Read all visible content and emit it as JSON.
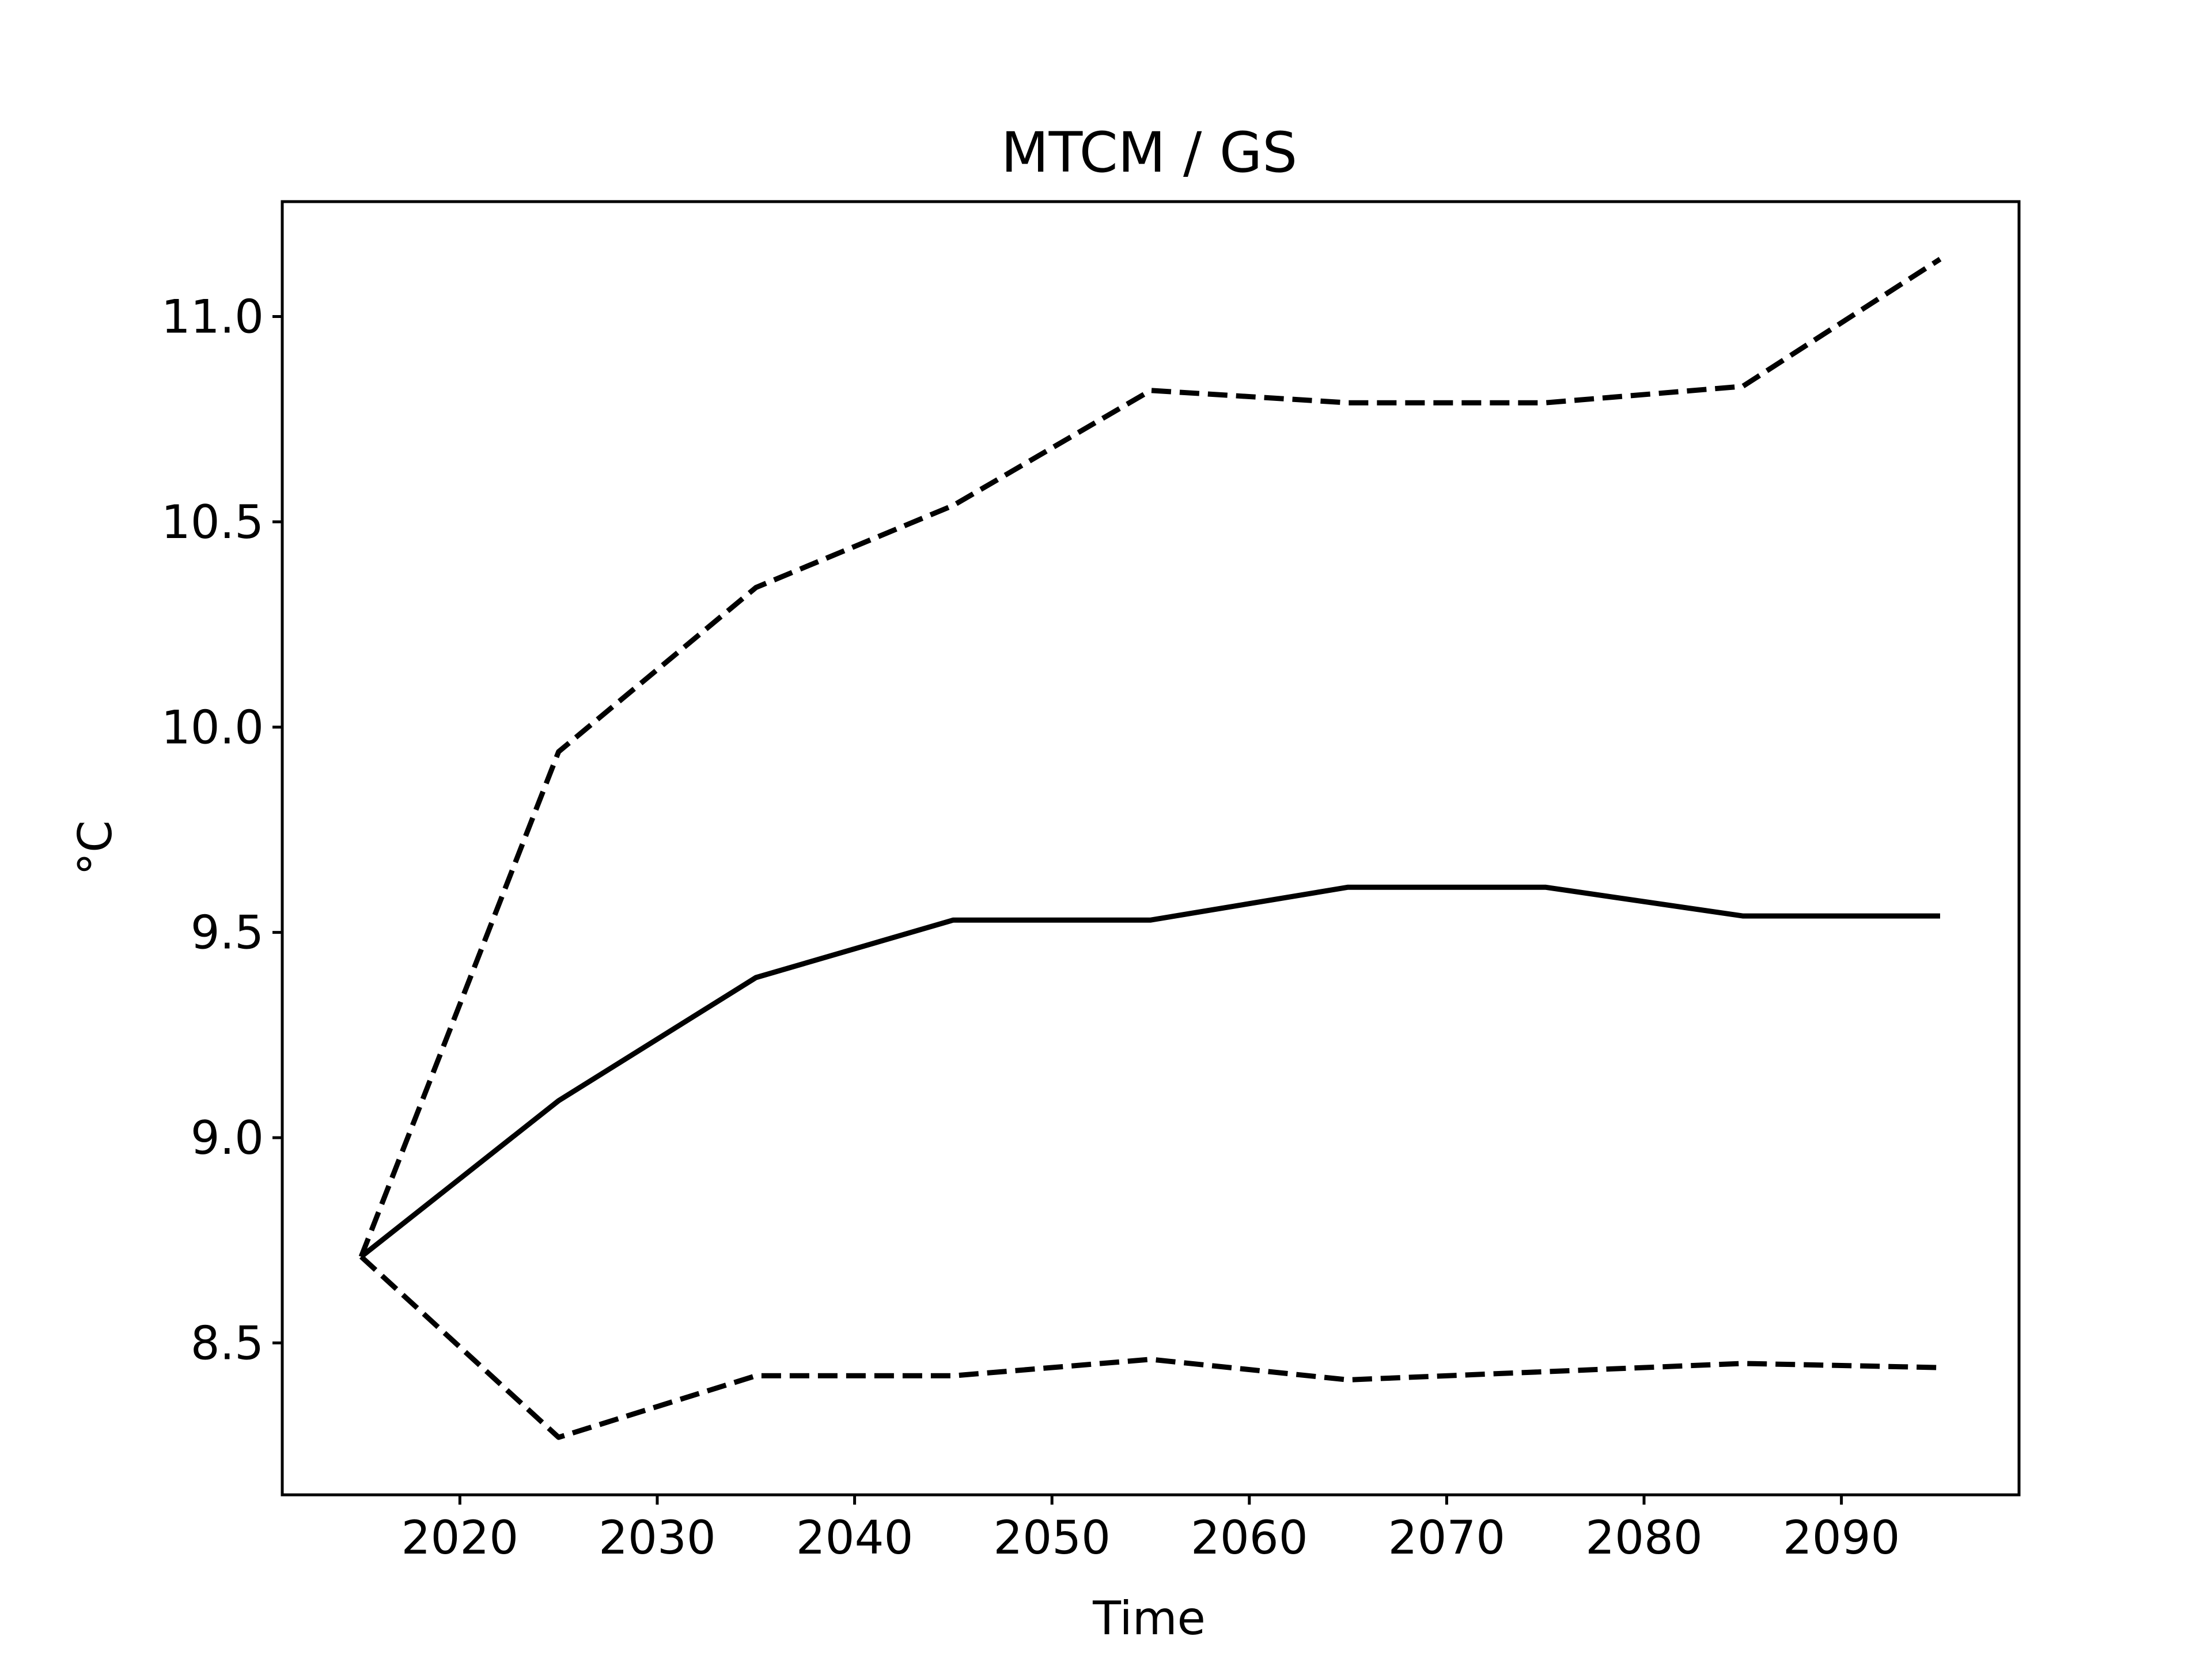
{
  "chart_data": {
    "type": "line",
    "title": "MTCM / GS",
    "xlabel": "Time",
    "ylabel": "°C",
    "xlim": [
      2011,
      2099
    ],
    "ylim": [
      8.13,
      11.28
    ],
    "xticks": [
      2020,
      2030,
      2040,
      2050,
      2060,
      2070,
      2080,
      2090
    ],
    "yticks": [
      8.5,
      9.0,
      9.5,
      10.0,
      10.5,
      11.0
    ],
    "grid": false,
    "legend": "none",
    "x": [
      2015,
      2025,
      2035,
      2045,
      2055,
      2065,
      2075,
      2085,
      2095
    ],
    "series": [
      {
        "style": "solid",
        "color": "#000000",
        "values": [
          8.71,
          9.09,
          9.39,
          9.53,
          9.53,
          9.61,
          9.61,
          9.54,
          9.54
        ]
      },
      {
        "style": "dashed",
        "color": "#000000",
        "values": [
          8.71,
          9.94,
          10.34,
          10.54,
          10.82,
          10.79,
          10.79,
          10.83,
          11.14
        ]
      },
      {
        "style": "dashed",
        "color": "#000000",
        "values": [
          8.71,
          8.27,
          8.42,
          8.42,
          8.46,
          8.41,
          8.43,
          8.45,
          8.44
        ]
      }
    ]
  }
}
